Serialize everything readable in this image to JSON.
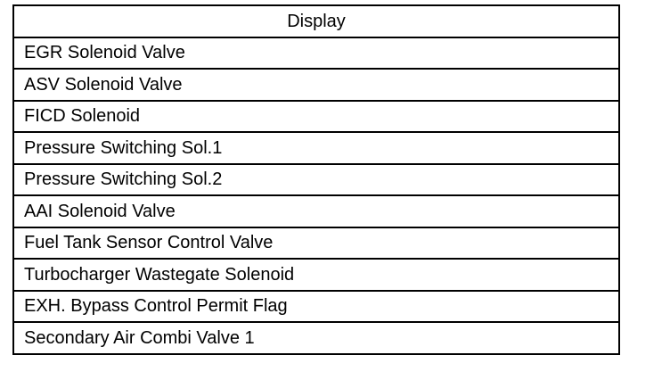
{
  "table": {
    "header": "Display",
    "rows": [
      "EGR Solenoid Valve",
      "ASV Solenoid Valve",
      "FICD Solenoid",
      "Pressure Switching Sol.1",
      "Pressure Switching Sol.2",
      "AAI Solenoid Valve",
      "Fuel Tank Sensor Control Valve",
      "Turbocharger Wastegate Solenoid",
      "EXH. Bypass Control Permit Flag",
      "Secondary Air Combi Valve 1"
    ]
  }
}
